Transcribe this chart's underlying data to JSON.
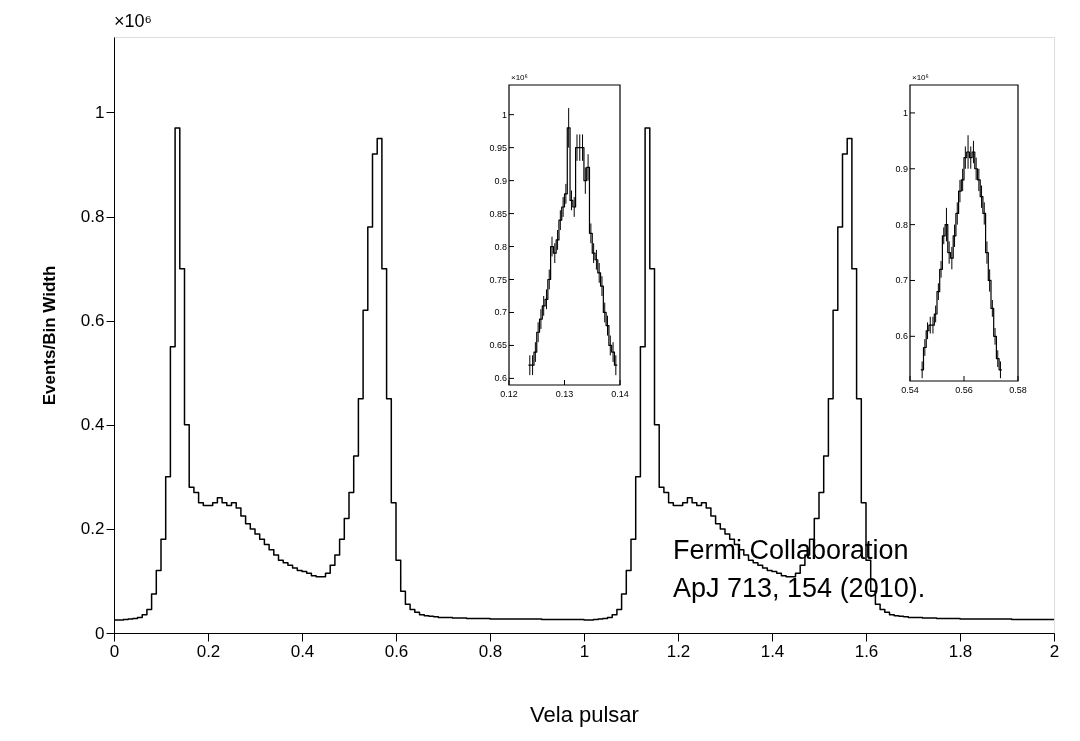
{
  "chart_data": [
    {
      "type": "histogram",
      "xlabel": "Vela pulsar",
      "ylabel": "Events/Bin Width",
      "xlim": [
        0,
        2
      ],
      "ylim": [
        0,
        1.145
      ],
      "xticks": [
        0,
        0.2,
        0.4,
        0.6,
        0.8,
        1,
        1.2,
        1.4,
        1.6,
        1.8,
        2
      ],
      "yticks": [
        0,
        0.2,
        0.4,
        0.6,
        0.8,
        1
      ],
      "grid": false,
      "color": "#000000",
      "annotations": [
        "×10⁶",
        "Fermi Collaboration",
        "ApJ 713, 154 (2010)."
      ],
      "bins": [
        0,
        0.01,
        0.02,
        0.03,
        0.04,
        0.05,
        0.06,
        0.07,
        0.08,
        0.09,
        0.1,
        0.11,
        0.12,
        0.13,
        0.14,
        0.15,
        0.16,
        0.17,
        0.18,
        0.19,
        0.2,
        0.21,
        0.22,
        0.23,
        0.24,
        0.25,
        0.26,
        0.27,
        0.28,
        0.29,
        0.3,
        0.31,
        0.32,
        0.33,
        0.34,
        0.35,
        0.36,
        0.37,
        0.38,
        0.39,
        0.4,
        0.41,
        0.42,
        0.43,
        0.44,
        0.45,
        0.46,
        0.47,
        0.48,
        0.49,
        0.5,
        0.51,
        0.52,
        0.53,
        0.54,
        0.55,
        0.56,
        0.57,
        0.58,
        0.59,
        0.6,
        0.61,
        0.62,
        0.63,
        0.64,
        0.65,
        0.66,
        0.67,
        0.68,
        0.69,
        0.7,
        0.71,
        0.72,
        0.73,
        0.74,
        0.75,
        0.76,
        0.77,
        0.78,
        0.79,
        0.8,
        0.81,
        0.82,
        0.83,
        0.84,
        0.85,
        0.86,
        0.87,
        0.88,
        0.89,
        0.9,
        0.91,
        0.92,
        0.93,
        0.94,
        0.95,
        0.96,
        0.97,
        0.98,
        0.99,
        1,
        1.01,
        1.02,
        1.03,
        1.04,
        1.05,
        1.06,
        1.07,
        1.08,
        1.09,
        1.1,
        1.11,
        1.12,
        1.13,
        1.14,
        1.15,
        1.16,
        1.17,
        1.18,
        1.19,
        1.2,
        1.21,
        1.22,
        1.23,
        1.24,
        1.25,
        1.26,
        1.27,
        1.28,
        1.29,
        1.3,
        1.31,
        1.32,
        1.33,
        1.34,
        1.35,
        1.36,
        1.37,
        1.38,
        1.39,
        1.4,
        1.41,
        1.42,
        1.43,
        1.44,
        1.45,
        1.46,
        1.47,
        1.48,
        1.49,
        1.5,
        1.51,
        1.52,
        1.53,
        1.54,
        1.55,
        1.56,
        1.57,
        1.58,
        1.59,
        1.6,
        1.61,
        1.62,
        1.63,
        1.64,
        1.65,
        1.66,
        1.67,
        1.68,
        1.69,
        1.7,
        1.71,
        1.72,
        1.73,
        1.74,
        1.75,
        1.76,
        1.77,
        1.78,
        1.79,
        1.8,
        1.81,
        1.82,
        1.83,
        1.84,
        1.85,
        1.86,
        1.87,
        1.88,
        1.89,
        1.9,
        1.91,
        1.92,
        1.93,
        1.94,
        1.95,
        1.96,
        1.97,
        1.98,
        1.99,
        2
      ],
      "values": [
        0.025,
        0.025,
        0.026,
        0.027,
        0.028,
        0.03,
        0.035,
        0.045,
        0.075,
        0.12,
        0.18,
        0.3,
        0.55,
        0.97,
        0.7,
        0.4,
        0.28,
        0.27,
        0.25,
        0.245,
        0.245,
        0.25,
        0.26,
        0.25,
        0.245,
        0.25,
        0.24,
        0.225,
        0.21,
        0.2,
        0.19,
        0.18,
        0.17,
        0.16,
        0.15,
        0.14,
        0.135,
        0.13,
        0.125,
        0.12,
        0.118,
        0.115,
        0.11,
        0.108,
        0.108,
        0.115,
        0.13,
        0.15,
        0.18,
        0.22,
        0.27,
        0.34,
        0.45,
        0.62,
        0.78,
        0.92,
        0.95,
        0.7,
        0.45,
        0.25,
        0.14,
        0.08,
        0.055,
        0.045,
        0.04,
        0.035,
        0.033,
        0.032,
        0.031,
        0.03,
        0.03,
        0.03,
        0.029,
        0.029,
        0.029,
        0.028,
        0.028,
        0.028,
        0.028,
        0.028,
        0.027,
        0.027,
        0.027,
        0.027,
        0.027,
        0.027,
        0.027,
        0.027,
        0.027,
        0.027,
        0.027,
        0.026,
        0.026,
        0.026,
        0.026,
        0.026,
        0.026,
        0.026,
        0.026,
        0.026,
        0.025,
        0.025,
        0.026,
        0.027,
        0.028,
        0.03,
        0.035,
        0.045,
        0.075,
        0.12,
        0.18,
        0.3,
        0.55,
        0.97,
        0.7,
        0.4,
        0.28,
        0.27,
        0.25,
        0.245,
        0.245,
        0.25,
        0.26,
        0.25,
        0.245,
        0.25,
        0.24,
        0.225,
        0.21,
        0.2,
        0.19,
        0.18,
        0.17,
        0.16,
        0.15,
        0.14,
        0.135,
        0.13,
        0.125,
        0.12,
        0.118,
        0.115,
        0.11,
        0.108,
        0.108,
        0.115,
        0.13,
        0.15,
        0.18,
        0.22,
        0.27,
        0.34,
        0.45,
        0.62,
        0.78,
        0.92,
        0.95,
        0.7,
        0.45,
        0.25,
        0.14,
        0.08,
        0.055,
        0.045,
        0.04,
        0.035,
        0.033,
        0.032,
        0.031,
        0.03,
        0.03,
        0.03,
        0.029,
        0.029,
        0.029,
        0.028,
        0.028,
        0.028,
        0.028,
        0.028,
        0.027,
        0.027,
        0.027,
        0.027,
        0.027,
        0.027,
        0.027,
        0.027,
        0.027,
        0.027,
        0.027,
        0.026,
        0.026,
        0.026,
        0.026,
        0.026,
        0.026,
        0.026,
        0.026,
        0.026
      ]
    },
    {
      "type": "histogram",
      "xlim": [
        0.12,
        0.14
      ],
      "ylim": [
        0.59,
        1.045
      ],
      "xticks": [
        0.12,
        0.13,
        0.14
      ],
      "yticks": [
        0.6,
        0.65,
        0.7,
        0.75,
        0.8,
        0.85,
        0.9,
        0.95,
        1
      ],
      "grid": false,
      "color": "#000000",
      "annotations": [
        "×10⁶"
      ],
      "bins": [
        0.1235,
        0.124,
        0.1245,
        0.125,
        0.1255,
        0.126,
        0.1265,
        0.127,
        0.1275,
        0.128,
        0.1285,
        0.129,
        0.1295,
        0.13,
        0.1305,
        0.131,
        0.1315,
        0.132,
        0.1325,
        0.133,
        0.1335,
        0.134,
        0.1345,
        0.135,
        0.1355,
        0.136,
        0.1365,
        0.137,
        0.1375,
        0.138,
        0.1385,
        0.139,
        0.1395
      ],
      "values": [
        0.62,
        0.62,
        0.64,
        0.67,
        0.69,
        0.71,
        0.72,
        0.75,
        0.8,
        0.79,
        0.81,
        0.84,
        0.86,
        0.88,
        0.98,
        0.87,
        0.86,
        0.95,
        0.95,
        0.95,
        0.9,
        0.92,
        0.82,
        0.79,
        0.78,
        0.76,
        0.74,
        0.7,
        0.68,
        0.65,
        0.64,
        0.62
      ],
      "errors": [
        0.015,
        0.015,
        0.015,
        0.015,
        0.015,
        0.015,
        0.015,
        0.015,
        0.015,
        0.015,
        0.015,
        0.015,
        0.015,
        0.015,
        0.03,
        0.015,
        0.015,
        0.02,
        0.02,
        0.02,
        0.02,
        0.02,
        0.015,
        0.015,
        0.015,
        0.015,
        0.015,
        0.015,
        0.015,
        0.015,
        0.015,
        0.015
      ]
    },
    {
      "type": "histogram",
      "xlim": [
        0.54,
        0.58
      ],
      "ylim": [
        0.52,
        1.05
      ],
      "xticks": [
        0.54,
        0.56,
        0.58
      ],
      "yticks": [
        0.6,
        0.7,
        0.8,
        0.9,
        1
      ],
      "grid": false,
      "color": "#000000",
      "annotations": [
        "×10⁶"
      ],
      "bins": [
        0.544,
        0.545,
        0.546,
        0.547,
        0.548,
        0.549,
        0.55,
        0.551,
        0.552,
        0.553,
        0.554,
        0.555,
        0.556,
        0.557,
        0.558,
        0.559,
        0.56,
        0.561,
        0.562,
        0.563,
        0.564,
        0.565,
        0.566,
        0.567,
        0.568,
        0.569,
        0.57,
        0.571,
        0.572,
        0.573,
        0.574
      ],
      "values": [
        0.54,
        0.58,
        0.61,
        0.62,
        0.62,
        0.64,
        0.68,
        0.72,
        0.78,
        0.8,
        0.75,
        0.74,
        0.78,
        0.82,
        0.86,
        0.88,
        0.92,
        0.93,
        0.92,
        0.93,
        0.9,
        0.88,
        0.85,
        0.82,
        0.75,
        0.7,
        0.65,
        0.6,
        0.56,
        0.54
      ],
      "errors": [
        0.015,
        0.015,
        0.015,
        0.015,
        0.015,
        0.015,
        0.015,
        0.015,
        0.015,
        0.03,
        0.02,
        0.02,
        0.02,
        0.02,
        0.02,
        0.02,
        0.02,
        0.03,
        0.02,
        0.02,
        0.02,
        0.02,
        0.02,
        0.02,
        0.02,
        0.02,
        0.015,
        0.015,
        0.015,
        0.015
      ]
    }
  ]
}
